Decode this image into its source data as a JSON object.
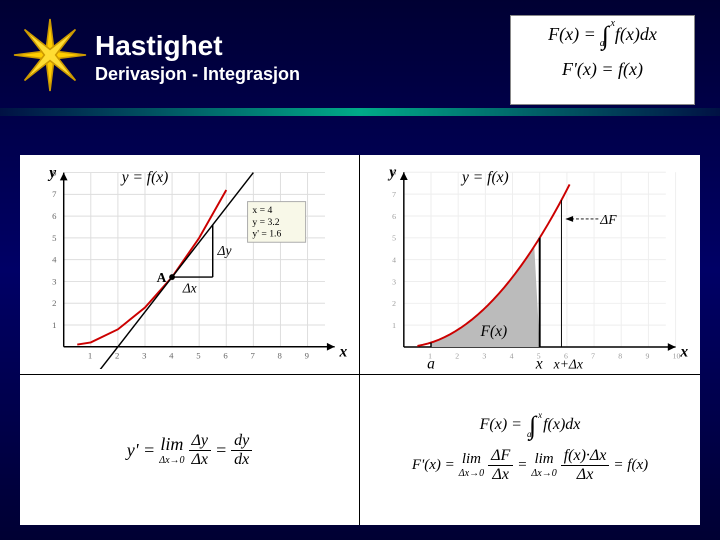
{
  "header": {
    "title": "Hastighet",
    "subtitle": "Derivasjon   -   Integrasjon"
  },
  "top_formula": {
    "line1": "F(x) = ∫ₐˣ f(x)dx",
    "line2": "F'(x) = f(x)"
  },
  "chart_left": {
    "title": "y = f(x)",
    "y_axis_label": "y",
    "x_axis_label": "x",
    "x_ticks": [
      1,
      2,
      3,
      4,
      5,
      6,
      7,
      8,
      9
    ],
    "y_ticks": [
      1,
      2,
      3,
      4,
      5,
      6,
      7,
      8
    ],
    "curve_color": "#cc0000",
    "tangent_color": "#000000",
    "grid_color": "#dddddd",
    "point_label": "A",
    "dx_label": "Δx",
    "dy_label": "Δy",
    "info_box": [
      "x = 4",
      "y = 3.2",
      "y' = 1.6"
    ],
    "curve_type": "quadratic",
    "curve_points": [
      [
        0.5,
        0.1
      ],
      [
        1,
        0.2
      ],
      [
        2,
        0.8
      ],
      [
        3,
        1.8
      ],
      [
        4,
        3.2
      ],
      [
        5,
        5.0
      ],
      [
        6,
        7.2
      ]
    ],
    "tangent_points": [
      [
        1,
        -1.6
      ],
      [
        7,
        8.0
      ]
    ],
    "point_A": [
      4,
      3.2
    ],
    "dx_span": [
      4,
      5.5
    ],
    "dy_at": 5.5
  },
  "chart_right": {
    "title": "y = f(x)",
    "y_axis_label": "y",
    "x_axis_label": "x",
    "x_ticks": [
      1,
      2,
      3,
      4,
      5,
      6,
      7,
      8,
      9,
      10
    ],
    "y_ticks": [
      1,
      2,
      3,
      4,
      5,
      6,
      7,
      8
    ],
    "curve_color": "#cc0000",
    "grid_color": "#eeeeee",
    "shade_color": "#bbbbbb",
    "a_label": "a",
    "x_label": "x",
    "xdx_label": "x+Δx",
    "F_label": "F(x)",
    "dF_label": "ΔF",
    "curve_points": [
      [
        0.5,
        0.1
      ],
      [
        1,
        0.2
      ],
      [
        2,
        0.8
      ],
      [
        3,
        1.8
      ],
      [
        4,
        3.2
      ],
      [
        5,
        5.0
      ],
      [
        6,
        7.2
      ]
    ],
    "shade_from": 1,
    "shade_to": 5,
    "dF_from": 5,
    "dF_to": 5.8
  },
  "formula_left": "y' = lim(Δx→0) Δy/Δx = dy/dx",
  "formula_right": {
    "line1": "F(x) = ∫ₐˣ f(x)dx",
    "line2": "F'(x) = lim(Δx→0) ΔF/Δx = lim(Δx→0) f(x)·Δx/Δx = f(x)"
  },
  "colors": {
    "bg_dark": "#000044",
    "accent": "#00aa88",
    "star": "#ffcc00"
  }
}
